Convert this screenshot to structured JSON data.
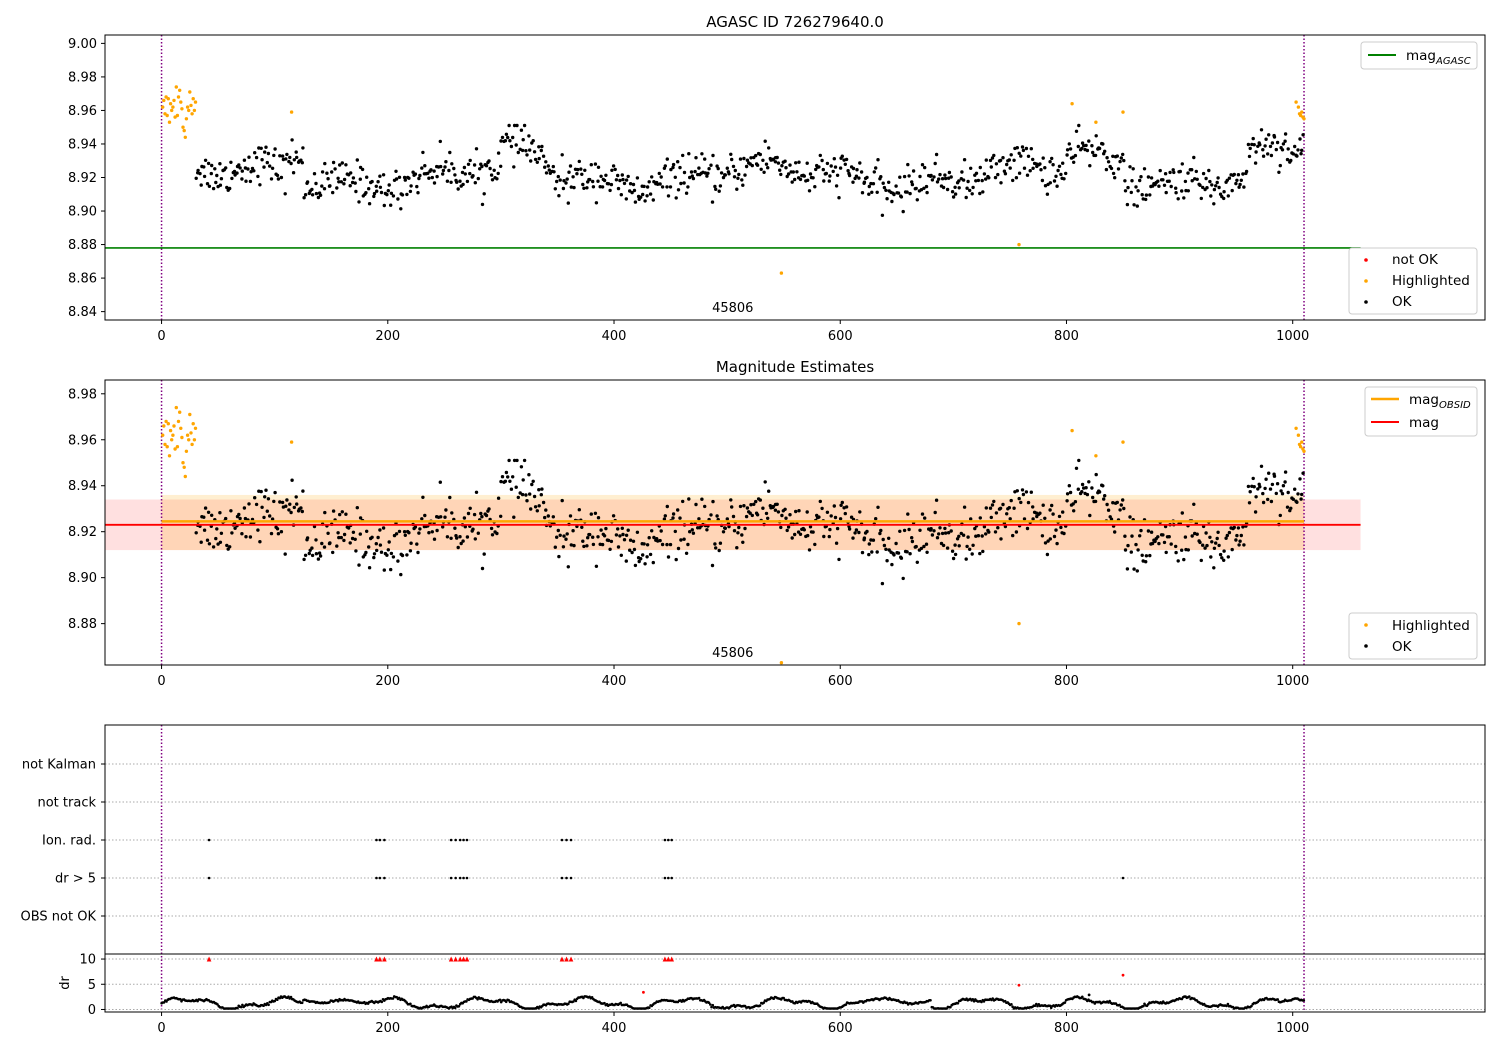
{
  "chart_data": [
    {
      "type": "scatter",
      "title": "AGASC ID 726279640.0",
      "xlim": [
        -50,
        1170
      ],
      "ylim": [
        8.835,
        9.005
      ],
      "xticks": [
        0,
        200,
        400,
        600,
        800,
        1000
      ],
      "yticks": [
        8.84,
        8.86,
        8.88,
        8.9,
        8.92,
        8.94,
        8.96,
        8.98,
        9.0
      ],
      "yticklabels": [
        "8.84",
        "8.86",
        "8.88",
        "8.90",
        "8.92",
        "8.94",
        "8.96",
        "8.98",
        "9.00"
      ],
      "obs_boundaries": [
        0,
        1010
      ],
      "obsid_label": "45806",
      "obsid_label_x": 505,
      "hline": {
        "name": "mag_AGASC",
        "y": 8.878,
        "x_range": [
          -50,
          1060
        ],
        "color": "#008000"
      },
      "legend_top": [
        {
          "label": "mag",
          "sub": "AGASC",
          "style": "line",
          "color": "#008000"
        }
      ],
      "legend_bottom": [
        {
          "label": "not OK",
          "style": "dot",
          "color": "#ff0000"
        },
        {
          "label": "Highlighted",
          "style": "dot",
          "color": "#ffa500"
        },
        {
          "label": "OK",
          "style": "dot",
          "color": "#000000"
        }
      ],
      "series": [
        {
          "name": "OK",
          "color": "#000000",
          "x_range": [
            30,
            1010
          ],
          "count": 900,
          "baseline": 8.921,
          "spread": 0.008
        },
        {
          "name": "Highlighted",
          "color": "#ffa500",
          "points": [
            [
              1,
              8.962
            ],
            [
              2,
              8.966
            ],
            [
              3,
              8.958
            ],
            [
              4,
              8.968
            ],
            [
              5,
              8.957
            ],
            [
              6,
              8.967
            ],
            [
              7,
              8.953
            ],
            [
              8,
              8.964
            ],
            [
              9,
              8.96
            ],
            [
              10,
              8.962
            ],
            [
              11,
              8.966
            ],
            [
              12,
              8.956
            ],
            [
              13,
              8.974
            ],
            [
              14,
              8.957
            ],
            [
              15,
              8.968
            ],
            [
              16,
              8.972
            ],
            [
              17,
              8.965
            ],
            [
              18,
              8.961
            ],
            [
              19,
              8.95
            ],
            [
              20,
              8.948
            ],
            [
              21,
              8.944
            ],
            [
              22,
              8.955
            ],
            [
              23,
              8.962
            ],
            [
              24,
              8.96
            ],
            [
              25,
              8.971
            ],
            [
              26,
              8.963
            ],
            [
              27,
              8.958
            ],
            [
              28,
              8.967
            ],
            [
              29,
              8.96
            ],
            [
              30,
              8.965
            ],
            [
              115,
              8.959
            ],
            [
              548,
              8.863
            ],
            [
              758,
              8.88
            ],
            [
              805,
              8.964
            ],
            [
              826,
              8.953
            ],
            [
              850,
              8.959
            ],
            [
              1003,
              8.965
            ],
            [
              1005,
              8.962
            ],
            [
              1006,
              8.958
            ],
            [
              1007,
              8.957
            ],
            [
              1008,
              8.959
            ],
            [
              1009,
              8.956
            ],
            [
              1010,
              8.955
            ]
          ]
        }
      ]
    },
    {
      "type": "scatter",
      "title": "Magnitude Estimates",
      "xlim": [
        -50,
        1170
      ],
      "ylim": [
        8.862,
        8.986
      ],
      "xticks": [
        0,
        200,
        400,
        600,
        800,
        1000
      ],
      "yticks": [
        8.88,
        8.9,
        8.92,
        8.94,
        8.96,
        8.98
      ],
      "yticklabels": [
        "8.88",
        "8.90",
        "8.92",
        "8.94",
        "8.96",
        "8.98"
      ],
      "obs_boundaries": [
        0,
        1010
      ],
      "obsid_label": "45806",
      "obsid_label_x": 505,
      "mag": {
        "y": 8.923,
        "band": [
          8.912,
          8.934
        ],
        "x_range": [
          -50,
          1060
        ],
        "color": "#ff0000"
      },
      "mag_obsid": {
        "y": 8.9245,
        "band": [
          8.912,
          8.936
        ],
        "x_range": [
          0,
          1010
        ],
        "color": "#ffa500"
      },
      "legend_top": [
        {
          "label": "mag",
          "sub": "OBSID",
          "style": "line",
          "color": "#ffa500"
        },
        {
          "label": "mag",
          "style": "line",
          "color": "#ff0000"
        }
      ],
      "legend_bottom": [
        {
          "label": "Highlighted",
          "style": "dot",
          "color": "#ffa500"
        },
        {
          "label": "OK",
          "style": "dot",
          "color": "#000000"
        }
      ]
    },
    {
      "type": "scatter",
      "title": "",
      "xlim": [
        -50,
        1170
      ],
      "xticks": [
        0,
        200,
        400,
        600,
        800,
        1000
      ],
      "obs_boundaries": [
        0,
        1010
      ],
      "flag_rows": [
        "not Kalman",
        "not track",
        "Ion. rad.",
        "dr > 5",
        "OBS not OK"
      ],
      "flag_points": {
        "Ion. rad.": [
          42,
          190,
          193,
          197,
          256,
          260,
          264,
          267,
          270,
          354,
          358,
          362,
          445,
          448,
          451
        ],
        "dr > 5": [
          42,
          190,
          193,
          197,
          256,
          260,
          264,
          267,
          270,
          354,
          358,
          362,
          445,
          448,
          451,
          850
        ]
      },
      "dr": {
        "ylabel": "dr",
        "ylim": [
          -0.5,
          11
        ],
        "yticks": [
          0,
          5,
          10
        ],
        "yticklabels": [
          "0",
          "5",
          "10"
        ],
        "clipped_at": 10,
        "clipped_points": [
          42,
          190,
          193,
          197,
          256,
          260,
          264,
          267,
          270,
          354,
          358,
          362,
          445,
          448,
          451
        ],
        "outliers": [
          [
            426,
            3.4
          ],
          [
            758,
            4.8
          ],
          [
            850,
            6.8
          ],
          [
            820,
            2.9
          ]
        ],
        "baseline_range": [
          0.2,
          2.6
        ]
      }
    }
  ]
}
